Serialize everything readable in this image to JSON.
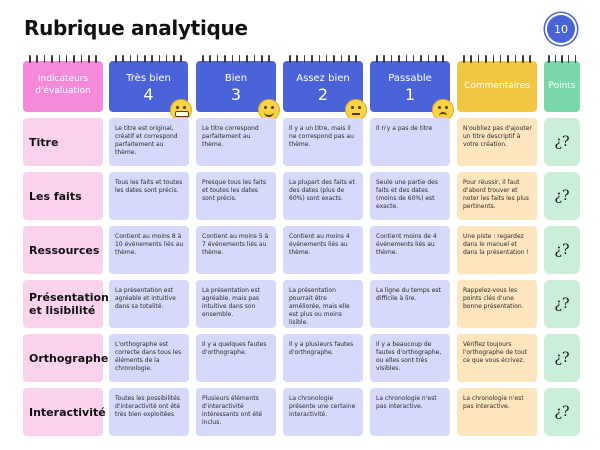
{
  "title": "Rubrique analytique",
  "page_number": "10",
  "colors": {
    "blue": "#4a63d8",
    "pink": "#f48ad9",
    "yellow": "#f0c643",
    "green": "#79d7a9",
    "cell_blue": "#d6d9fa",
    "cell_pink": "#fad2ec",
    "cell_yellow": "#fde5bd",
    "cell_green": "#cbeed9"
  },
  "headers": {
    "indicators": "Indicateurs d'évaluation",
    "levels": [
      {
        "label": "Très bien",
        "number": "4",
        "emoji": "grinning-face-icon"
      },
      {
        "label": "Bien",
        "number": "3",
        "emoji": "smiling-face-icon"
      },
      {
        "label": "Assez bien",
        "number": "2",
        "emoji": "neutral-face-icon"
      },
      {
        "label": "Passable",
        "number": "1",
        "emoji": "frowning-face-icon"
      }
    ],
    "comments": "Commentaires",
    "points": "Points"
  },
  "rows": [
    {
      "criterion": "Titre",
      "cells": [
        "Le titre est original, créatif et correspond parfaitement au thème.",
        "Le titre correspond parfaitement au thème.",
        "Il y a un titre, mais il ne correspond pas au thème.",
        "Il n'y a pas de titre"
      ],
      "comment": "N'oubliez pas d'ajouter un titre descriptif à votre création.",
      "points": "¿?"
    },
    {
      "criterion": "Les faits",
      "cells": [
        "Tous les faits et toutes les dates sont précis.",
        "Presque tous les faits et toutes les dates sont précis.",
        "La plupart des faits et des dates (plus de 60%) sont exacts.",
        "Seule une partie des faits et des dates (moins de 60%) est exacte."
      ],
      "comment": "Pour réussir, il faut d'abord trouver et noter les faits les plus pertinents.",
      "points": "¿?"
    },
    {
      "criterion": "Ressources",
      "cells": [
        "Contient au moins 8 à 10 événements liés au thème.",
        "Contient au moins 5 à 7 événements liés au thème.",
        "Contient au moins 4 événements liés au thème.",
        "Contient moins de 4 événements liés au thème."
      ],
      "comment": "Une piste : regardez dans le manuel et dans la présentation !",
      "points": "¿?"
    },
    {
      "criterion": "Présentation et lisibilité",
      "cells": [
        "La présentation est agréable et intuitive dans sa totalité.",
        "La présentation est agréable, mais pas intuitive dans son ensemble.",
        "La présentation pourrait être améliorée, mais elle est plus ou moins lisible.",
        "La ligne du temps est difficile à lire."
      ],
      "comment": "Rappelez-vous les points clés d'une bonne présentation.",
      "points": "¿?"
    },
    {
      "criterion": "Orthographe",
      "cells": [
        "L'orthographe est correcte dans tous les éléments de la chronologie.",
        "Il y a quelques fautes d'orthographe.",
        "Il y a plusieurs fautes d'orthographe.",
        "Il y a beaucoup de fautes d'orthographe, ou elles sont très visibles."
      ],
      "comment": "Vérifiez toujours l'orthographe de tout ce que vous écrivez.",
      "points": "¿?"
    },
    {
      "criterion": "Interactivité",
      "cells": [
        "Toutes les possibilités d'interactivité ont été très bien exploitées",
        "Plusieurs éléments d'interactivité intéressants ont été inclus.",
        "La chronologie présente une certaine interactivité.",
        "La chronologie n'est pas interactive."
      ],
      "comment": "La chronologie n'est pas interactive.",
      "points": "¿?"
    }
  ]
}
